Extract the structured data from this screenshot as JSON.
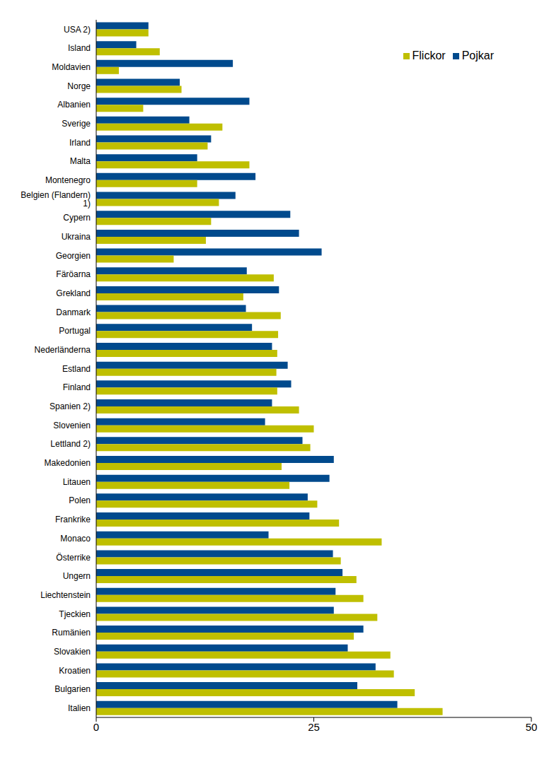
{
  "chart_data": {
    "type": "bar",
    "orientation": "horizontal",
    "categories": [
      "USA 2)",
      "Island",
      "Moldavien",
      "Norge",
      "Albanien",
      "Sverige",
      "Irland",
      "Malta",
      "Montenegro",
      "Belgien (Flandern) 1)",
      "Cypern",
      "Ukraina",
      "Georgien",
      "Färöarna",
      "Grekland",
      "Danmark",
      "Portugal",
      "Nederländerna",
      "Estland",
      "Finland",
      "Spanien 2)",
      "Slovenien",
      "Lettland 2)",
      "Makedonien",
      "Litauen",
      "Polen",
      "Frankrike",
      "Monaco",
      "Österrike",
      "Ungern",
      "Liechtenstein",
      "Tjeckien",
      "Rumänien",
      "Slovakien",
      "Kroatien",
      "Bulgarien",
      "Italien"
    ],
    "series": [
      {
        "name": "Pojkar",
        "color": "#004a8d",
        "values": [
          6.0,
          4.6,
          15.7,
          9.6,
          17.6,
          10.7,
          13.2,
          11.6,
          18.3,
          16.0,
          22.3,
          23.3,
          25.9,
          17.3,
          21.0,
          17.2,
          17.9,
          20.2,
          22.0,
          22.4,
          20.2,
          19.4,
          23.7,
          27.3,
          26.8,
          24.3,
          24.5,
          19.8,
          27.2,
          28.3,
          27.5,
          27.3,
          30.7,
          28.9,
          32.1,
          30.0,
          34.6
        ]
      },
      {
        "name": "Flickor",
        "color": "#bfbf00",
        "values": [
          6.0,
          7.3,
          2.6,
          9.8,
          5.4,
          14.5,
          12.8,
          17.6,
          11.6,
          14.1,
          13.2,
          12.6,
          8.9,
          20.4,
          16.9,
          21.2,
          20.9,
          20.8,
          20.7,
          20.8,
          23.3,
          25.0,
          24.6,
          21.3,
          22.2,
          25.4,
          27.9,
          32.8,
          28.1,
          29.9,
          30.7,
          32.3,
          29.6,
          33.8,
          34.2,
          36.6,
          39.8
        ]
      }
    ],
    "xlim": [
      0,
      50
    ],
    "xticks": [
      0,
      25,
      50
    ],
    "grid": false,
    "legend": "upper right"
  }
}
